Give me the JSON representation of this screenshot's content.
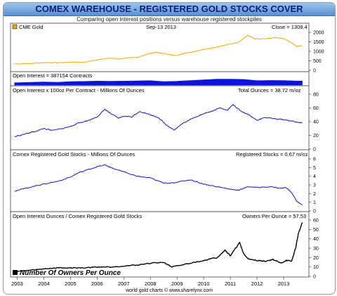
{
  "header": {
    "title": "COMEX WAREHOUSE - REGISTERED GOLD STOCKS COVER",
    "subtitle": "Comparing open interest positions versus warehouse registered stockpiles"
  },
  "footer": {
    "credit": "world gold charts © www.sharelynx.com"
  },
  "colors": {
    "gold": "#f0a800",
    "blue": "#0a14dc",
    "black": "#000000",
    "title": "#0d1f7a"
  },
  "chart_data": [
    {
      "type": "line",
      "legend": "CME Gold",
      "date_label": "Sep-13 2013",
      "value_label": "Close = 1308.4",
      "color": "#f0a800",
      "x": [
        2002.9,
        2003.5,
        2004.0,
        2004.5,
        2005.0,
        2005.5,
        2006.0,
        2006.4,
        2006.8,
        2007.0,
        2007.5,
        2008.0,
        2008.2,
        2008.7,
        2008.9,
        2009.5,
        2010.0,
        2010.5,
        2011.0,
        2011.3,
        2011.67,
        2011.9,
        2012.3,
        2012.7,
        2013.0,
        2013.3,
        2013.5,
        2013.7
      ],
      "y": [
        340,
        360,
        410,
        400,
        430,
        430,
        540,
        650,
        590,
        630,
        680,
        900,
        950,
        840,
        780,
        950,
        1100,
        1230,
        1380,
        1480,
        1850,
        1650,
        1650,
        1720,
        1670,
        1450,
        1250,
        1308
      ],
      "ylim": [
        0,
        2000
      ],
      "yticks": [
        0,
        500,
        1000,
        1500,
        2000
      ]
    },
    {
      "type": "area",
      "legend": "Open Interest = 387154 Contracts",
      "color": "#0a14dc",
      "x": [
        2002.9,
        2003.5,
        2004.0,
        2004.5,
        2005.0,
        2005.5,
        2006.0,
        2006.5,
        2007.0,
        2007.5,
        2008.0,
        2008.5,
        2009.0,
        2009.5,
        2010.0,
        2010.5,
        2011.0,
        2011.5,
        2012.0,
        2012.5,
        2013.0,
        2013.5,
        2013.7
      ],
      "y": [
        220,
        260,
        300,
        270,
        330,
        350,
        380,
        360,
        380,
        400,
        420,
        330,
        370,
        430,
        500,
        560,
        560,
        540,
        420,
        440,
        430,
        390,
        387
      ]
    },
    {
      "type": "line",
      "legend": "Open Interest x 100oz Per Contract - Millions Of Ounces",
      "value_label": "Total Ounces = 38.72 m/oz",
      "color": "#0a14dc",
      "x": [
        2002.9,
        2003.3,
        2003.7,
        2004.0,
        2004.3,
        2004.7,
        2005.0,
        2005.3,
        2005.7,
        2006.0,
        2006.3,
        2006.5,
        2006.8,
        2007.0,
        2007.3,
        2007.6,
        2008.0,
        2008.3,
        2008.6,
        2008.9,
        2009.2,
        2009.6,
        2010.0,
        2010.3,
        2010.6,
        2010.9,
        2011.1,
        2011.4,
        2011.7,
        2012.0,
        2012.3,
        2012.7,
        2013.0,
        2013.3,
        2013.5,
        2013.7
      ],
      "y": [
        18,
        22,
        26,
        30,
        27,
        30,
        33,
        38,
        42,
        47,
        58,
        52,
        45,
        48,
        47,
        55,
        50,
        46,
        35,
        28,
        37,
        45,
        52,
        55,
        60,
        57,
        65,
        55,
        50,
        42,
        46,
        44,
        43,
        41,
        39,
        38.7
      ],
      "ylim": [
        0,
        80
      ],
      "yticks": [
        0,
        20,
        40,
        60,
        80
      ]
    },
    {
      "type": "line",
      "legend": "Comex Registered Gold Stocks - Millions Of Ounces",
      "value_label": "Registered Stocks = 0.67 m/oz",
      "color": "#0a14dc",
      "x": [
        2002.9,
        2003.3,
        2003.7,
        2004.0,
        2004.5,
        2005.0,
        2005.3,
        2005.7,
        2006.0,
        2006.3,
        2006.6,
        2007.0,
        2007.5,
        2008.0,
        2008.5,
        2009.0,
        2009.5,
        2010.0,
        2010.5,
        2011.0,
        2011.3,
        2011.7,
        2012.0,
        2012.5,
        2012.9,
        2013.1,
        2013.3,
        2013.5,
        2013.7
      ],
      "y": [
        2.3,
        2.6,
        2.9,
        3.1,
        3.4,
        3.9,
        4.4,
        4.8,
        5.1,
        5.3,
        4.9,
        4.5,
        4.0,
        3.8,
        3.2,
        3.3,
        3.6,
        3.1,
        2.8,
        2.5,
        2.4,
        2.8,
        2.7,
        2.8,
        2.6,
        2.7,
        2.1,
        1.1,
        0.67
      ],
      "ylim": [
        0,
        6
      ],
      "yticks": [
        0,
        1,
        2,
        3,
        4,
        5,
        6
      ]
    },
    {
      "type": "line",
      "legend": "Open Interest Ounces / Comex Registered Gold Stocks",
      "value_label": "Owners Per Ounce = 57.53",
      "series_label": "Number Of Owners Per Ounce",
      "color": "#000000",
      "x": [
        2002.9,
        2003.3,
        2003.7,
        2004.0,
        2004.5,
        2005.0,
        2005.5,
        2006.0,
        2006.5,
        2007.0,
        2007.5,
        2008.0,
        2008.5,
        2008.8,
        2009.0,
        2009.5,
        2010.0,
        2010.5,
        2010.8,
        2011.0,
        2011.2,
        2011.35,
        2011.5,
        2011.7,
        2012.0,
        2012.3,
        2012.6,
        2012.9,
        2013.1,
        2013.3,
        2013.45,
        2013.55,
        2013.7
      ],
      "y": [
        5,
        6,
        7,
        8,
        9,
        9,
        9,
        10,
        10,
        11,
        12,
        14,
        15,
        10,
        11,
        14,
        17,
        20,
        28,
        22,
        30,
        36,
        24,
        18,
        17,
        16,
        18,
        14,
        17,
        16,
        30,
        45,
        57.5
      ],
      "ylim": [
        0,
        60
      ],
      "yticks": [
        0,
        10,
        20,
        30,
        40,
        50,
        60
      ]
    }
  ],
  "x_axis": {
    "ticks": [
      "2003",
      "2004",
      "2005",
      "2006",
      "2007",
      "2008",
      "2009",
      "2010",
      "2011",
      "2012",
      "2013"
    ]
  }
}
